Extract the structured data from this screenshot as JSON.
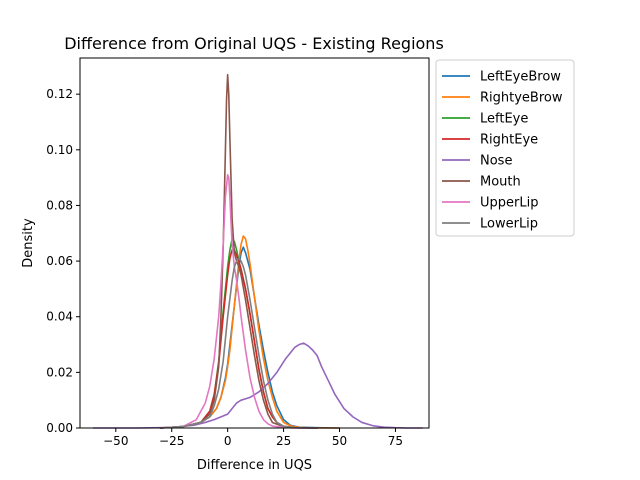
{
  "chart_data": {
    "type": "line",
    "title": "Difference from Original UQS - Existing Regions",
    "xlabel": "Difference in UQS",
    "ylabel": "Density",
    "xlim": [
      -66,
      90
    ],
    "ylim": [
      0,
      0.133
    ],
    "xticks": [
      -50,
      -25,
      0,
      25,
      50,
      75
    ],
    "xtick_labels": [
      "−50",
      "−25",
      "0",
      "25",
      "50",
      "75"
    ],
    "yticks": [
      0,
      0.02,
      0.04,
      0.06,
      0.08,
      0.1,
      0.12
    ],
    "ytick_labels": [
      "0.00",
      "0.02",
      "0.04",
      "0.06",
      "0.08",
      "0.10",
      "0.12"
    ],
    "grid": false,
    "legend_position": "outside-right-top",
    "series": [
      {
        "name": "LeftEyeBrow",
        "color": "#1f77b4",
        "x": [
          -30,
          -20,
          -12,
          -8,
          -5,
          -3,
          -1,
          0,
          1,
          2,
          3,
          4,
          5,
          6,
          7,
          8,
          10,
          12,
          14,
          16,
          18,
          20,
          22,
          25,
          28,
          32,
          40,
          50
        ],
        "y": [
          0,
          0.0005,
          0.002,
          0.004,
          0.007,
          0.011,
          0.018,
          0.023,
          0.03,
          0.037,
          0.044,
          0.051,
          0.058,
          0.063,
          0.065,
          0.063,
          0.057,
          0.047,
          0.037,
          0.028,
          0.02,
          0.013,
          0.008,
          0.003,
          0.001,
          0.0003,
          0.0001,
          0
        ]
      },
      {
        "name": "RightyeBrow",
        "color": "#ff7f0e",
        "x": [
          -30,
          -20,
          -12,
          -8,
          -5,
          -3,
          -1,
          0,
          1,
          2,
          3,
          4,
          5,
          6,
          7,
          8,
          9,
          10,
          12,
          14,
          16,
          18,
          20,
          22,
          25,
          28,
          32,
          40,
          50
        ],
        "y": [
          0,
          0.0005,
          0.002,
          0.004,
          0.007,
          0.011,
          0.017,
          0.022,
          0.028,
          0.036,
          0.044,
          0.052,
          0.06,
          0.066,
          0.069,
          0.068,
          0.064,
          0.059,
          0.047,
          0.035,
          0.025,
          0.017,
          0.011,
          0.006,
          0.002,
          0.0008,
          0.0002,
          0,
          0
        ]
      },
      {
        "name": "LeftEye",
        "color": "#2ca02c",
        "x": [
          -30,
          -20,
          -12,
          -8,
          -6,
          -4,
          -2,
          0,
          1,
          2,
          3,
          4,
          5,
          6,
          8,
          10,
          12,
          14,
          16,
          18,
          20,
          22,
          25,
          30,
          40
        ],
        "y": [
          0,
          0.0005,
          0.002,
          0.006,
          0.012,
          0.024,
          0.042,
          0.058,
          0.064,
          0.068,
          0.067,
          0.064,
          0.06,
          0.057,
          0.05,
          0.041,
          0.031,
          0.021,
          0.013,
          0.007,
          0.004,
          0.002,
          0.0006,
          0.0001,
          0
        ]
      },
      {
        "name": "RightEye",
        "color": "#d62728",
        "x": [
          -30,
          -20,
          -12,
          -8,
          -6,
          -4,
          -2,
          0,
          1,
          2,
          3,
          4,
          5,
          6,
          8,
          10,
          12,
          14,
          16,
          18,
          20,
          22,
          25,
          30,
          40
        ],
        "y": [
          0,
          0.0005,
          0.002,
          0.006,
          0.012,
          0.023,
          0.04,
          0.055,
          0.061,
          0.064,
          0.064,
          0.062,
          0.06,
          0.057,
          0.05,
          0.041,
          0.031,
          0.021,
          0.013,
          0.007,
          0.004,
          0.002,
          0.0006,
          0.0001,
          0
        ]
      },
      {
        "name": "Nose",
        "color": "#9467bd",
        "x": [
          -60,
          -40,
          -25,
          -15,
          -10,
          -6,
          -3,
          0,
          2,
          4,
          6,
          10,
          14,
          18,
          22,
          26,
          30,
          32,
          34,
          36,
          38,
          40,
          42,
          45,
          48,
          52,
          56,
          60,
          65,
          70,
          75,
          80,
          87
        ],
        "y": [
          0,
          0,
          0.0002,
          0.001,
          0.002,
          0.003,
          0.004,
          0.005,
          0.007,
          0.009,
          0.01,
          0.011,
          0.013,
          0.016,
          0.02,
          0.025,
          0.029,
          0.03,
          0.0305,
          0.0295,
          0.028,
          0.026,
          0.022,
          0.017,
          0.012,
          0.007,
          0.004,
          0.002,
          0.0008,
          0.0003,
          0.0001,
          0,
          0
        ]
      },
      {
        "name": "Mouth",
        "color": "#8c564b",
        "x": [
          -30,
          -20,
          -12,
          -8,
          -6,
          -4,
          -3,
          -2,
          -1,
          -0.5,
          0,
          0.5,
          1,
          2,
          3,
          4,
          5,
          6,
          8,
          10,
          12,
          14,
          16,
          18,
          20,
          25,
          30,
          40
        ],
        "y": [
          0,
          0.0005,
          0.002,
          0.005,
          0.01,
          0.022,
          0.04,
          0.065,
          0.1,
          0.118,
          0.127,
          0.12,
          0.104,
          0.075,
          0.063,
          0.06,
          0.058,
          0.055,
          0.046,
          0.036,
          0.026,
          0.017,
          0.01,
          0.005,
          0.002,
          0.0005,
          0.0001,
          0
        ]
      },
      {
        "name": "UpperLip",
        "color": "#e377c2",
        "x": [
          -30,
          -20,
          -14,
          -10,
          -8,
          -6,
          -4,
          -3,
          -2,
          -1,
          0,
          0.5,
          1,
          1.5,
          2,
          3,
          4,
          5,
          6,
          8,
          10,
          12,
          14,
          16,
          18,
          20,
          25,
          30,
          40
        ],
        "y": [
          0,
          0.0005,
          0.003,
          0.009,
          0.015,
          0.025,
          0.04,
          0.052,
          0.066,
          0.083,
          0.091,
          0.09,
          0.083,
          0.074,
          0.066,
          0.058,
          0.053,
          0.047,
          0.04,
          0.028,
          0.018,
          0.011,
          0.006,
          0.003,
          0.0015,
          0.0007,
          0.0002,
          0,
          0
        ]
      },
      {
        "name": "LowerLip",
        "color": "#7f7f7f",
        "x": [
          -30,
          -20,
          -12,
          -8,
          -6,
          -4,
          -2,
          0,
          2,
          3,
          4,
          5,
          6,
          7,
          8,
          10,
          12,
          14,
          16,
          18,
          20,
          22,
          25,
          30,
          40
        ],
        "y": [
          0,
          0.0005,
          0.002,
          0.004,
          0.008,
          0.014,
          0.024,
          0.04,
          0.053,
          0.058,
          0.06,
          0.061,
          0.06,
          0.058,
          0.055,
          0.046,
          0.036,
          0.026,
          0.017,
          0.01,
          0.005,
          0.002,
          0.0006,
          0.0001,
          0
        ]
      }
    ]
  }
}
